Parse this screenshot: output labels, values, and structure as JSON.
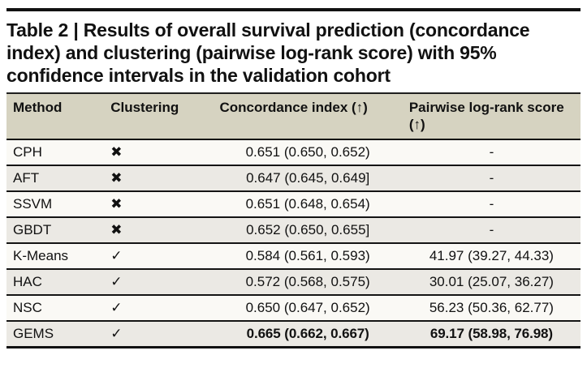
{
  "title": "Table 2 | Results of overall survival prediction (concordance index) and clustering (pairwise log-rank score) with 95% confidence intervals in the validation cohort",
  "table": {
    "type": "table",
    "columns": {
      "method": "Method",
      "clustering": "Clustering",
      "concordance": "Concordance index (↑)",
      "pairwise": "Pairwise log-rank score (↑)"
    },
    "rows": [
      {
        "method": "CPH",
        "clustering": "✖",
        "concordance": "0.651 (0.650, 0.652)",
        "pairwise": "-"
      },
      {
        "method": "AFT",
        "clustering": "✖",
        "concordance": "0.647 (0.645, 0.649]",
        "pairwise": "-"
      },
      {
        "method": "SSVM",
        "clustering": "✖",
        "concordance": "0.651 (0.648, 0.654)",
        "pairwise": "-"
      },
      {
        "method": "GBDT",
        "clustering": "✖",
        "concordance": "0.652 (0.650, 0.655]",
        "pairwise": "-"
      },
      {
        "method": "K-Means",
        "clustering": "✓",
        "concordance": "0.584 (0.561, 0.593)",
        "pairwise": "41.97 (39.27, 44.33)"
      },
      {
        "method": "HAC",
        "clustering": "✓",
        "concordance": "0.572 (0.568, 0.575)",
        "pairwise": "30.01 (25.07, 36.27)"
      },
      {
        "method": "NSC",
        "clustering": "✓",
        "concordance": "0.650 (0.647, 0.652)",
        "pairwise": "56.23 (50.36, 62.77)"
      },
      {
        "method": "GEMS",
        "clustering": "✓",
        "concordance": "0.665 (0.662, 0.667)",
        "pairwise": "69.17 (58.98, 76.98)"
      }
    ],
    "best_row": "GEMS"
  },
  "colors": {
    "header_bg": "#d6d3c1",
    "row_bg": "#faf9f5",
    "row_alt_bg": "#ebe9e4",
    "rule": "#141414",
    "ink": "#111111"
  }
}
